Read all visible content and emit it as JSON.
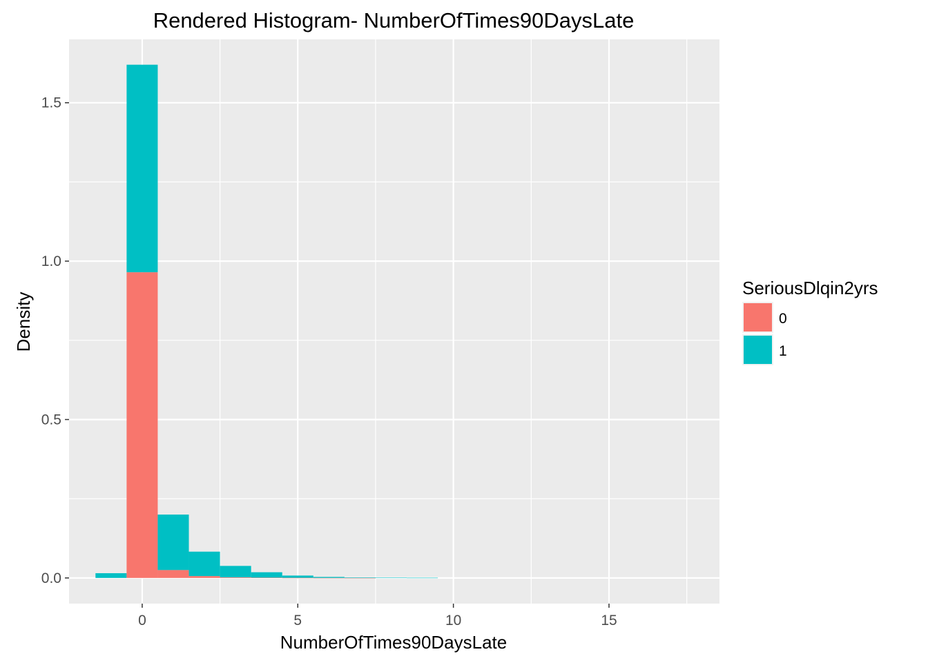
{
  "chart_data": {
    "type": "bar",
    "title": "Rendered Histogram- NumberOfTimes90DaysLate",
    "xlabel": "NumberOfTimes90DaysLate",
    "ylabel": "Density",
    "xlim": [
      -2.35,
      18.55
    ],
    "ylim": [
      -0.081,
      1.7
    ],
    "x_ticks": [
      0,
      5,
      10,
      15
    ],
    "x_tick_labels": [
      "0",
      "5",
      "10",
      "15"
    ],
    "y_ticks": [
      0.0,
      0.5,
      1.0,
      1.5
    ],
    "y_tick_labels": [
      "0.0",
      "0.5",
      "1.0",
      "1.5"
    ],
    "bin_width": 1,
    "stacked": true,
    "grid": true,
    "panel_background": "#ebebeb",
    "legend": {
      "title": "SeriousDlqin2yrs",
      "position": "right"
    },
    "series": [
      {
        "name": "0",
        "color": "#f8766d",
        "x": [
          -1,
          0,
          1,
          2,
          3,
          4,
          5,
          6,
          7,
          8,
          9
        ],
        "values": [
          0.0,
          0.965,
          0.025,
          0.006,
          0.002,
          0.001,
          0.0005,
          0.0002,
          0.0001,
          0.0,
          0.0
        ]
      },
      {
        "name": "1",
        "color": "#00bfc4",
        "x": [
          -1,
          0,
          1,
          2,
          3,
          4,
          5,
          6,
          7,
          8,
          9
        ],
        "values": [
          0.015,
          0.655,
          0.175,
          0.077,
          0.036,
          0.017,
          0.007,
          0.003,
          0.0015,
          0.0009,
          0.0006
        ]
      }
    ]
  }
}
